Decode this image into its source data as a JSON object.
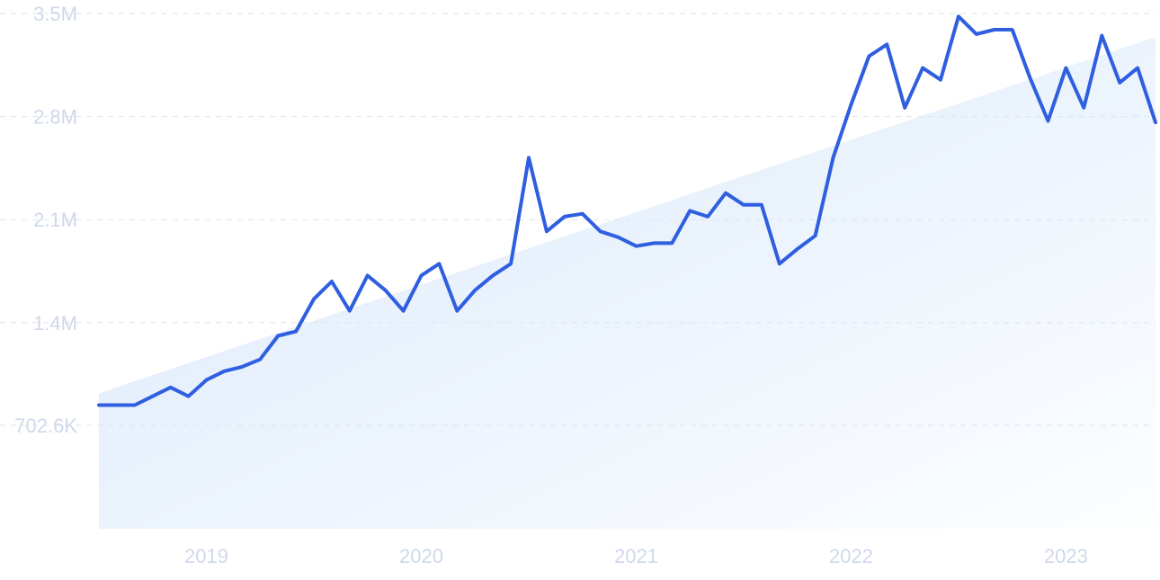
{
  "chart_data": {
    "type": "line",
    "title": "",
    "xlabel": "",
    "ylabel": "",
    "grid": true,
    "legend": "none",
    "x_start": "2018-07",
    "x_step": "month",
    "xlim": [
      "2018-07",
      "2023-06"
    ],
    "ylim": [
      0,
      3500000
    ],
    "y_ticks": [
      702600,
      1400000,
      2100000,
      2800000,
      3500000
    ],
    "y_tick_labels": [
      "702.6K",
      "1.4M",
      "2.1M",
      "2.8M",
      "3.5M"
    ],
    "x_ticks": [
      "2019-01",
      "2020-01",
      "2021-01",
      "2022-01",
      "2023-01"
    ],
    "x_tick_labels": [
      "2019",
      "2020",
      "2021",
      "2022",
      "2023"
    ],
    "colors": {
      "line": "#2f5fe0",
      "trend_fill": "#d7e7fa",
      "tick_text": "#cfd8ea",
      "grid": "#dbe3ef"
    },
    "series": [
      {
        "values": [
          840000,
          840000,
          840000,
          900000,
          960000,
          900000,
          1010000,
          1070000,
          1100000,
          1150000,
          1310000,
          1340000,
          1560000,
          1680000,
          1480000,
          1720000,
          1620000,
          1480000,
          1720000,
          1800000,
          1480000,
          1620000,
          1720000,
          1800000,
          2520000,
          2020000,
          2120000,
          2140000,
          2020000,
          1980000,
          1920000,
          1940000,
          1940000,
          2160000,
          2120000,
          2280000,
          2200000,
          2200000,
          1800000,
          1900000,
          1990000,
          2520000,
          2880000,
          3210000,
          3290000,
          2860000,
          3130000,
          3050000,
          3480000,
          3360000,
          3390000,
          3390000,
          3060000,
          2770000,
          3130000,
          2860000,
          3350000,
          3030000,
          3130000,
          2760000
        ]
      },
      {
        "kind": "trend",
        "start": 920000,
        "end": 3340000
      }
    ]
  }
}
